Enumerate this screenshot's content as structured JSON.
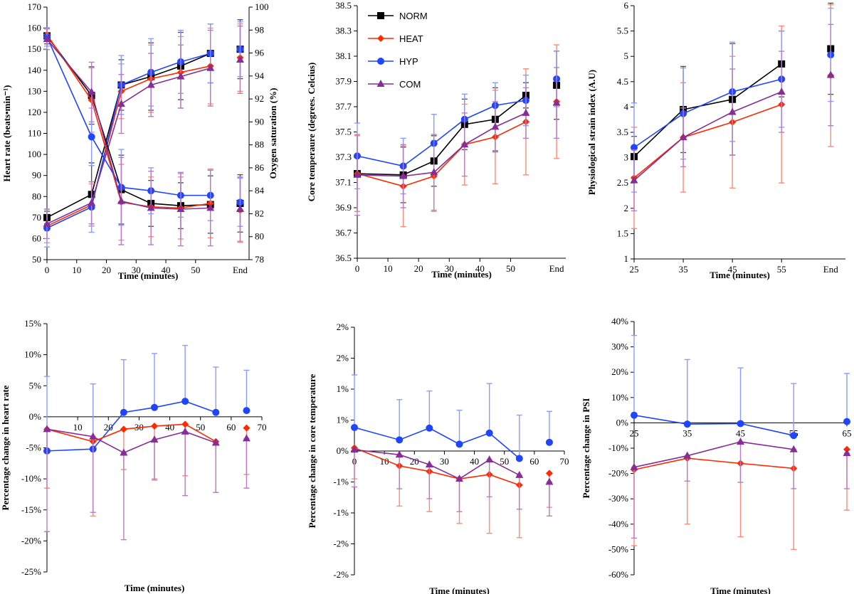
{
  "colors": {
    "NORM": "#000000",
    "HEAT": "#ff2a00",
    "HYP": "#1f45ff",
    "COM": "#862e96",
    "HYP_err": "#8a9cff",
    "COM_err": "#b77dc4",
    "HEAT_err": "#ff8a75"
  },
  "legend": [
    {
      "key": "NORM",
      "label": "NORM",
      "marker": "square"
    },
    {
      "key": "HEAT",
      "label": "HEAT",
      "marker": "diamond"
    },
    {
      "key": "HYP",
      "label": "HYP",
      "marker": "circle"
    },
    {
      "key": "COM",
      "label": "COM",
      "marker": "triangle"
    }
  ],
  "chart_data": [
    {
      "id": "hr_spo2",
      "type": "line",
      "xlabel": "Time (minutes)",
      "ylabel": "Heart rate (beats•min⁻¹)",
      "ylabel2": "Oxygen saturation (%)",
      "xlim": [
        0,
        68
      ],
      "ylim": [
        50,
        170
      ],
      "ylim2": [
        78,
        100
      ],
      "xticks": [
        0,
        10,
        20,
        30,
        40,
        50
      ],
      "xtick_labels": [
        "0",
        "10",
        "20",
        "30",
        "40",
        "50"
      ],
      "extra_xtick": {
        "x": 65,
        "label": "End"
      },
      "yticks": [
        50,
        60,
        70,
        80,
        90,
        100,
        110,
        120,
        130,
        140,
        150,
        160,
        170
      ],
      "yticks2": [
        78,
        80,
        82,
        84,
        86,
        88,
        90,
        92,
        94,
        96,
        98,
        100
      ],
      "series": [
        {
          "name": "NORM",
          "axis": "left",
          "x": [
            0,
            15,
            25,
            35,
            45,
            55
          ],
          "y": [
            70,
            81,
            133,
            137,
            142,
            148
          ],
          "err": [
            3,
            15,
            12,
            16,
            16,
            14
          ],
          "end": {
            "x": 65,
            "y": 150,
            "err": 14
          }
        },
        {
          "name": "HEAT",
          "axis": "left",
          "x": [
            0,
            15,
            25,
            35,
            45,
            55
          ],
          "y": [
            66,
            76,
            130,
            136,
            139,
            142
          ],
          "err": [
            8,
            10,
            13,
            16,
            17,
            18
          ],
          "end": {
            "x": 65,
            "y": 146,
            "err": 16
          }
        },
        {
          "name": "HYP",
          "axis": "left",
          "x": [
            0,
            15,
            25,
            35,
            45,
            55
          ],
          "y": [
            65,
            75,
            133,
            139,
            144,
            148
          ],
          "err": [
            9,
            12,
            14,
            16,
            15,
            14
          ],
          "end": {
            "x": 65,
            "y": 150,
            "err": 13
          }
        },
        {
          "name": "COM",
          "axis": "left",
          "x": [
            0,
            15,
            25,
            35,
            45,
            55
          ],
          "y": [
            67,
            77,
            124,
            133,
            137,
            141
          ],
          "err": [
            7,
            10,
            14,
            15,
            15,
            18
          ],
          "end": {
            "x": 65,
            "y": 145,
            "err": 16
          }
        },
        {
          "name": "NORM",
          "axis": "right",
          "x": [
            0,
            15,
            25,
            35,
            45,
            55
          ],
          "y": [
            97.5,
            92.3,
            84.1,
            82.9,
            82.7,
            82.8
          ],
          "err": [
            0.7,
            2.5,
            3.0,
            2.0,
            2.0,
            2.5
          ],
          "end": {
            "x": 65,
            "y": 82.9,
            "err": 2.5
          }
        },
        {
          "name": "HEAT",
          "axis": "right",
          "x": [
            0,
            15,
            25,
            35,
            45,
            55
          ],
          "y": [
            97.6,
            91.9,
            83.0,
            82.6,
            82.5,
            82.9
          ],
          "err": [
            0.6,
            2.8,
            3.3,
            2.6,
            2.7,
            3.0
          ],
          "end": {
            "x": 65,
            "y": 82.3,
            "err": 2.8
          }
        },
        {
          "name": "HYP",
          "axis": "right",
          "x": [
            0,
            15,
            25,
            35,
            45,
            55
          ],
          "y": [
            97.4,
            88.7,
            84.3,
            84.0,
            83.6,
            83.6
          ],
          "err": [
            0.8,
            2.5,
            3.3,
            2.0,
            1.9,
            2.2
          ],
          "end": {
            "x": 65,
            "y": 83.0,
            "err": 2.1
          }
        },
        {
          "name": "COM",
          "axis": "right",
          "x": [
            0,
            15,
            25,
            35,
            45,
            55
          ],
          "y": [
            97.2,
            92.6,
            83.1,
            82.5,
            82.4,
            82.5
          ],
          "err": [
            0.9,
            2.6,
            3.8,
            3.2,
            3.2,
            3.3
          ],
          "end": {
            "x": 65,
            "y": 82.4,
            "err": 2.8
          }
        }
      ]
    },
    {
      "id": "core_temp",
      "type": "line",
      "xlabel": "Time (minutes)",
      "ylabel": "Core temperaure (degrees. Celcius)",
      "xlim": [
        0,
        68
      ],
      "ylim": [
        36.5,
        38.5
      ],
      "xticks": [
        0,
        10,
        20,
        30,
        40,
        50
      ],
      "xtick_labels": [
        "0",
        "10",
        "20",
        "30",
        "40",
        "50"
      ],
      "extra_xtick": {
        "x": 65,
        "label": "End"
      },
      "yticks": [
        36.5,
        36.7,
        36.9,
        37.1,
        37.3,
        37.5,
        37.7,
        37.9,
        38.1,
        38.3,
        38.5
      ],
      "ytick_labels": [
        "36.5",
        "36.7",
        "36.9",
        "37.1",
        "37.3",
        "37.5",
        "37.7",
        "37.9",
        "38.1",
        "38.3",
        "38.5"
      ],
      "series": [
        {
          "name": "NORM",
          "x": [
            0,
            15,
            25,
            35,
            45,
            55
          ],
          "y": [
            37.17,
            37.16,
            37.27,
            37.56,
            37.6,
            37.79
          ],
          "err": [
            0.3,
            0.22,
            0.2,
            0.2,
            0.25,
            0.1
          ],
          "end": {
            "x": 65,
            "y": 37.87,
            "err": 0.27
          }
        },
        {
          "name": "HEAT",
          "x": [
            0,
            15,
            25,
            35,
            45,
            55
          ],
          "y": [
            37.17,
            37.07,
            37.15,
            37.4,
            37.46,
            37.58
          ],
          "err": [
            0.3,
            0.32,
            0.28,
            0.32,
            0.37,
            0.42
          ],
          "end": {
            "x": 65,
            "y": 37.74,
            "err": 0.45
          }
        },
        {
          "name": "HYP",
          "x": [
            0,
            15,
            25,
            35,
            45,
            55
          ],
          "y": [
            37.31,
            37.23,
            37.41,
            37.6,
            37.71,
            37.75
          ],
          "err": [
            0.26,
            0.22,
            0.23,
            0.2,
            0.18,
            0.2
          ],
          "end": {
            "x": 65,
            "y": 37.92,
            "err": 0.22
          }
        },
        {
          "name": "COM",
          "x": [
            0,
            15,
            25,
            35,
            45,
            55
          ],
          "y": [
            37.16,
            37.15,
            37.18,
            37.4,
            37.54,
            37.65
          ],
          "err": [
            0.32,
            0.25,
            0.3,
            0.25,
            0.2,
            0.2
          ],
          "end": {
            "x": 65,
            "y": 37.73,
            "err": 0.28
          }
        }
      ]
    },
    {
      "id": "psi",
      "type": "line",
      "xlabel": "Time (minutes)",
      "ylabel": "Physiological strain index (A.U)",
      "xlim": [
        25,
        68
      ],
      "ylim": [
        1,
        6
      ],
      "xticks": [
        25,
        35,
        45,
        55
      ],
      "xtick_labels": [
        "25",
        "35",
        "45",
        "55"
      ],
      "extra_xtick": {
        "x": 65,
        "label": "End"
      },
      "yticks": [
        1,
        1.5,
        2,
        2.5,
        3,
        3.5,
        4,
        4.5,
        5,
        5.5,
        6
      ],
      "ytick_labels": [
        "1",
        "1.5",
        "2",
        "2.5",
        "3",
        "3.5",
        "4",
        "4.5",
        "5",
        "5.5",
        "6"
      ],
      "series": [
        {
          "name": "NORM",
          "x": [
            25,
            35,
            45,
            55
          ],
          "y": [
            3.02,
            3.95,
            4.15,
            4.85
          ],
          "err": [
            0.4,
            0.85,
            1.1,
            0.65
          ],
          "end": {
            "x": 65,
            "y": 5.15,
            "err": 0.9
          }
        },
        {
          "name": "HEAT",
          "x": [
            25,
            35,
            45,
            55
          ],
          "y": [
            2.6,
            3.4,
            3.7,
            4.05
          ],
          "err": [
            1.0,
            1.08,
            1.3,
            1.55
          ],
          "end": {
            "x": 65,
            "y": 4.62,
            "err": 1.4
          }
        },
        {
          "name": "HYP",
          "x": [
            25,
            35,
            45,
            55
          ],
          "y": [
            3.2,
            3.87,
            4.3,
            4.55
          ],
          "err": [
            0.88,
            0.9,
            0.98,
            0.95
          ],
          "end": {
            "x": 65,
            "y": 5.03,
            "err": 0.92
          }
        },
        {
          "name": "COM",
          "x": [
            25,
            35,
            45,
            55
          ],
          "y": [
            2.55,
            3.4,
            3.9,
            4.3
          ],
          "err": [
            0.6,
            0.58,
            0.85,
            0.8
          ],
          "end": {
            "x": 65,
            "y": 4.63,
            "err": 1.0
          }
        }
      ]
    },
    {
      "id": "pct_hr",
      "type": "line",
      "xlabel": "Time (minutes)",
      "ylabel": "Percentage change in heart rate",
      "xlim": [
        0,
        70
      ],
      "ylim": [
        -25,
        15
      ],
      "xaxis_at": 0,
      "xticks": [
        10,
        20,
        30,
        40,
        50,
        60,
        70
      ],
      "xtick_labels": [
        "10",
        "20",
        "30",
        "40",
        "50",
        "60",
        "70"
      ],
      "yticks": [
        -25,
        -20,
        -15,
        -10,
        -5,
        0,
        5,
        10,
        15
      ],
      "ytick_labels": [
        "-25%",
        "-20%",
        "-15%",
        "-10%",
        "-5%",
        "0%",
        "5%",
        "10%",
        "15%"
      ],
      "series": [
        {
          "name": "HYP",
          "x": [
            0,
            15,
            25,
            35,
            45,
            55
          ],
          "y": [
            -5.5,
            -5.2,
            0.7,
            1.5,
            2.5,
            0.7
          ],
          "err": [
            12,
            10.5,
            8.5,
            8.7,
            9,
            7.3
          ],
          "err_dir": "up",
          "end": {
            "x": 65,
            "y": 1.0,
            "err": 6.5
          }
        },
        {
          "name": "HEAT",
          "x": [
            0,
            15,
            25,
            35,
            45,
            55
          ],
          "y": [
            -2,
            -4,
            -2,
            -1.5,
            -1.2,
            -4
          ],
          "err": [
            9.5,
            12,
            6.5,
            8.5,
            8.3,
            8.2
          ],
          "err_dir": "down",
          "end": {
            "x": 65,
            "y": -1.8,
            "err": 7.5
          }
        },
        {
          "name": "COM",
          "x": [
            0,
            15,
            25,
            35,
            45,
            55
          ],
          "y": [
            -2,
            -3.2,
            -5.8,
            -3.7,
            -2.4,
            -4.2
          ],
          "err": [
            16.5,
            12.2,
            14,
            6.5,
            10.3,
            8
          ],
          "err_dir": "down",
          "end": {
            "x": 65,
            "y": -3.5,
            "err": 8
          }
        }
      ]
    },
    {
      "id": "pct_core",
      "type": "line",
      "xlabel": "Time (minutes)",
      "ylabel": "Percentage change in core temperature",
      "xlim": [
        0,
        70
      ],
      "ylim": [
        -2,
        2
      ],
      "xaxis_at": 0,
      "xticks": [
        0,
        10,
        20,
        30,
        40,
        50,
        60,
        70
      ],
      "xtick_labels": [
        "0",
        "10",
        "20",
        "30",
        "40",
        "50",
        "60",
        "70"
      ],
      "yticks": [
        -2,
        -1.5,
        -1,
        -0.5,
        0,
        0.5,
        1,
        1.5,
        2
      ],
      "ytick_labels": [
        "-2%",
        "-2%",
        "-1%",
        "-1%",
        "0%",
        "1%",
        "1%",
        "2%",
        "2%"
      ],
      "series": [
        {
          "name": "HYP",
          "x": [
            0,
            15,
            25,
            35,
            45,
            55
          ],
          "y": [
            0.38,
            0.18,
            0.37,
            0.11,
            0.29,
            -0.12
          ],
          "err": [
            0.85,
            0.65,
            0.6,
            0.55,
            0.8,
            0.7
          ],
          "err_dir": "up",
          "end": {
            "x": 65,
            "y": 0.14,
            "err": 0.5
          }
        },
        {
          "name": "HEAT",
          "x": [
            0,
            15,
            25,
            35,
            45,
            55
          ],
          "y": [
            0.05,
            -0.24,
            -0.33,
            -0.45,
            -0.38,
            -0.55
          ],
          "err": [
            0.5,
            0.65,
            0.65,
            0.72,
            0.95,
            0.85
          ],
          "err_dir": "down",
          "end": {
            "x": 65,
            "y": -0.36,
            "err": 0.55
          }
        },
        {
          "name": "COM",
          "x": [
            0,
            15,
            25,
            35,
            45,
            55
          ],
          "y": [
            0.02,
            -0.06,
            -0.22,
            -0.45,
            -0.14,
            -0.39
          ],
          "err": [
            0.6,
            0.55,
            0.55,
            0.53,
            0.6,
            0.55
          ],
          "err_dir": "down",
          "end": {
            "x": 65,
            "y": -0.5,
            "err": 0.55
          }
        }
      ]
    },
    {
      "id": "pct_psi",
      "type": "line",
      "xlabel": "Time (minutes)",
      "ylabel": "Percentage change in PSI",
      "xlim": [
        25,
        65
      ],
      "ylim": [
        -60,
        40
      ],
      "xaxis_at": 0,
      "xticks": [
        25,
        35,
        45,
        55,
        65
      ],
      "xtick_labels": [
        "25",
        "35",
        "45",
        "55",
        "65"
      ],
      "yticks": [
        -60,
        -50,
        -40,
        -30,
        -20,
        -10,
        0,
        10,
        20,
        30,
        40
      ],
      "ytick_labels": [
        "-60%",
        "-50%",
        "-40%",
        "-30%",
        "-20%",
        "-10%",
        "0%",
        "10%",
        "20%",
        "30%",
        "40%"
      ],
      "series": [
        {
          "name": "HYP",
          "x": [
            25,
            35,
            45,
            55
          ],
          "y": [
            3,
            -0.5,
            -0.3,
            -5
          ],
          "err": [
            31.5,
            25.5,
            22,
            20.5
          ],
          "err_dir": "up",
          "end": {
            "x": 65,
            "y": 0.5,
            "err": 19
          }
        },
        {
          "name": "HEAT",
          "x": [
            25,
            35,
            45,
            55
          ],
          "y": [
            -18.5,
            -14,
            -16,
            -18
          ],
          "err": [
            30,
            26,
            29,
            32
          ],
          "err_dir": "down",
          "end": {
            "x": 65,
            "y": -10.5,
            "err": 24
          }
        },
        {
          "name": "COM",
          "x": [
            25,
            35,
            45,
            55
          ],
          "y": [
            -17.5,
            -13,
            -7.5,
            -10.5
          ],
          "err": [
            28,
            10,
            16,
            15.5
          ],
          "err_dir": "down",
          "end": {
            "x": 65,
            "y": -12,
            "err": 14
          }
        }
      ]
    }
  ]
}
